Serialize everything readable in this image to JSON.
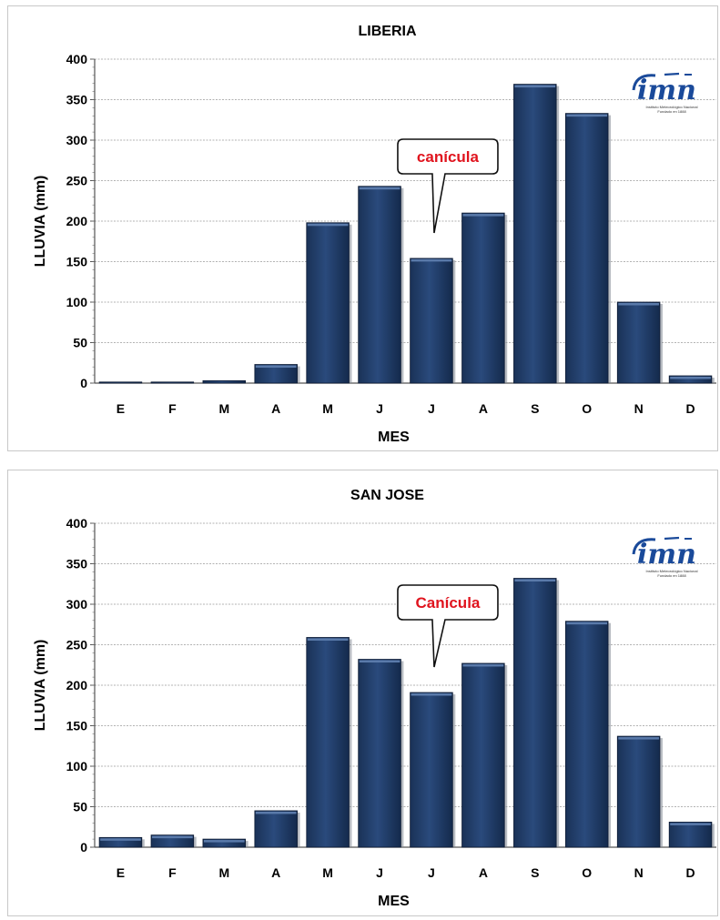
{
  "colors": {
    "bar": "#1f3a64",
    "bar_highlight": "#5a7aaa",
    "bar_shadow": "#0c1a33",
    "annotation_text": "#e0141e",
    "logo": "#1a4a9a",
    "grid": "#9a9a9a"
  },
  "chart_data": [
    {
      "type": "bar",
      "title": "LIBERIA",
      "xlabel": "MES",
      "ylabel": "LLUVIA (mm)",
      "categories": [
        "E",
        "F",
        "M",
        "A",
        "M",
        "J",
        "J",
        "A",
        "S",
        "O",
        "N",
        "D"
      ],
      "values": [
        1,
        0.5,
        3,
        23,
        198,
        243,
        154,
        210,
        369,
        333,
        100,
        9
      ],
      "ylim": [
        0,
        400
      ],
      "yticks": [
        0,
        50,
        100,
        150,
        200,
        250,
        300,
        350,
        400
      ],
      "grid": true,
      "annotation": {
        "text": "canícula",
        "category_index": 6
      },
      "logo": {
        "text": "imn",
        "subtitle": "Instituto Meteorológico Nacional",
        "subtitle2": "Fundado en 1888"
      }
    },
    {
      "type": "bar",
      "title": "SAN JOSE",
      "xlabel": "MES",
      "ylabel": "LLUVIA (mm)",
      "categories": [
        "E",
        "F",
        "M",
        "A",
        "M",
        "J",
        "J",
        "A",
        "S",
        "O",
        "N",
        "D"
      ],
      "values": [
        12,
        15,
        10,
        45,
        259,
        232,
        191,
        227,
        332,
        279,
        137,
        31
      ],
      "ylim": [
        0,
        400
      ],
      "yticks": [
        0,
        50,
        100,
        150,
        200,
        250,
        300,
        350,
        400
      ],
      "grid": true,
      "annotation": {
        "text": "Canícula",
        "category_index": 6
      },
      "logo": {
        "text": "imn",
        "subtitle": "Instituto Meteorológico Nacional",
        "subtitle2": "Fundado en 1888"
      }
    }
  ]
}
